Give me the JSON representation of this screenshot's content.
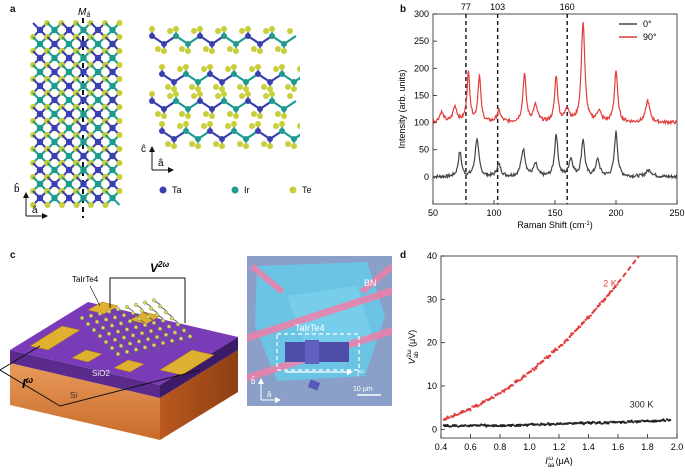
{
  "figure": {
    "panels": {
      "a": {
        "letter": "a",
        "mirror_label": "M",
        "mirror_sub": "â",
        "axes_left": {
          "vertical": "b̂",
          "horizontal": "â"
        },
        "axes_right": {
          "vertical": "ĉ",
          "horizontal": "â"
        },
        "legend": [
          "Ta",
          "Ir",
          "Te"
        ],
        "colors": {
          "Ta": "#3a3fae",
          "Ir": "#1e9a8e",
          "Te": "#c8cf3a"
        }
      },
      "b": {
        "letter": "b"
      },
      "c": {
        "letter": "c",
        "labels": {
          "material": "TaIrTe4",
          "v2w": "V",
          "v2w_sup": "2ω",
          "iw": "I",
          "iw_sup": "ω",
          "sio2": "SiO2",
          "si": "Si",
          "bn": "BN",
          "micro_material": "TaIrTe4",
          "micro_current": "I",
          "micro_current_sup": "ω",
          "scale_bar": "10 μm",
          "micro_axis_b": "b̂",
          "micro_axis_a": "â"
        }
      },
      "d": {
        "letter": "d"
      }
    }
  },
  "chart_data": [
    {
      "type": "line",
      "panel": "b",
      "title": "",
      "xlabel": "Raman Shift (cm",
      "xlabel_sup": "-1",
      "xlabel_end": ")",
      "ylabel": "Intensity (arb. units)",
      "xlim": [
        50,
        250
      ],
      "ylim": [
        -50,
        300
      ],
      "xticks": [
        50,
        100,
        150,
        200,
        250
      ],
      "yticks": [
        0,
        50,
        100,
        150,
        200,
        250,
        300
      ],
      "top_ticks": [
        77,
        103,
        160
      ],
      "dashed_lines": [
        77,
        103,
        160
      ],
      "legend": "top-right",
      "series": [
        {
          "name": "0°",
          "color": "#444444",
          "baseline": 0,
          "peaks": [
            [
              72,
              45,
              1.6
            ],
            [
              86,
              70,
              1.8
            ],
            [
              104,
              22,
              2
            ],
            [
              124,
              50,
              2
            ],
            [
              134,
              22,
              2
            ],
            [
              151,
              78,
              1.6
            ],
            [
              163,
              32,
              2
            ],
            [
              173,
              68,
              1.6
            ],
            [
              185,
              30,
              2
            ],
            [
              200,
              82,
              1.6
            ],
            [
              227,
              12,
              3
            ]
          ]
        },
        {
          "name": "90°",
          "color": "#e23c3c",
          "baseline": 100,
          "peaks": [
            [
              57,
              18,
              2
            ],
            [
              68,
              28,
              2
            ],
            [
              79,
              90,
              1.5
            ],
            [
              88,
              85,
              1.4
            ],
            [
              104,
              20,
              2
            ],
            [
              125,
              88,
              1.6
            ],
            [
              134,
              30,
              2
            ],
            [
              151,
              85,
              1.5
            ],
            [
              160,
              25,
              2
            ],
            [
              173,
              185,
              1.7
            ],
            [
              186,
              20,
              2
            ],
            [
              200,
              95,
              1.6
            ],
            [
              226,
              40,
              2
            ]
          ]
        }
      ]
    },
    {
      "type": "scatter",
      "panel": "d",
      "title": "",
      "xlabel": "I",
      "xlabel_sub": "aa",
      "xlabel_sup": "ω",
      "xlabel_unit": " (μA)",
      "ylabel": "V",
      "ylabel_sub": "ab",
      "ylabel_sup": "2ω",
      "ylabel_unit": " (μV)",
      "xlim": [
        0.4,
        2.0
      ],
      "ylim": [
        -2,
        40
      ],
      "xticks": [
        0.4,
        0.6,
        0.8,
        1.0,
        1.2,
        1.4,
        1.6,
        1.8,
        2.0
      ],
      "yticks": [
        0,
        10,
        20,
        30,
        40
      ],
      "series": [
        {
          "name": "2 K",
          "color": "#e23c3c",
          "fit_coeff": 13.2,
          "x_range": [
            0.42,
            1.6
          ],
          "fit_range": [
            0.42,
            1.76
          ]
        },
        {
          "name": "300 K",
          "color": "#222222",
          "fit_coeff": 0.38,
          "offset": 0.7,
          "x_range": [
            0.42,
            1.95
          ],
          "fit_range": [
            0.42,
            1.97
          ]
        }
      ]
    }
  ]
}
